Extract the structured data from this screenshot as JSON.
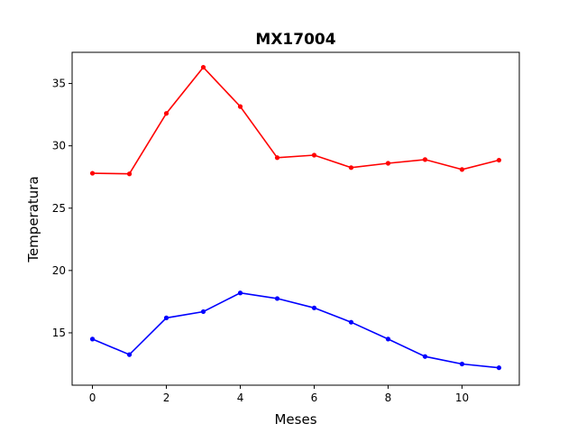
{
  "chart_data": {
    "type": "line",
    "title": "MX17004",
    "xlabel": "Meses",
    "ylabel": "Temperatura",
    "x": [
      0,
      1,
      2,
      3,
      4,
      5,
      6,
      7,
      8,
      9,
      10,
      11
    ],
    "xlim": [
      -0.55,
      11.55
    ],
    "ylim": [
      10.8,
      37.5
    ],
    "xticks": [
      0,
      2,
      4,
      6,
      8,
      10
    ],
    "yticks": [
      15,
      20,
      25,
      30,
      35
    ],
    "grid": false,
    "series": [
      {
        "color": "#ff0000",
        "values": [
          27.8,
          27.75,
          32.6,
          36.3,
          33.15,
          29.05,
          29.25,
          28.25,
          28.6,
          28.9,
          28.1,
          28.85
        ]
      },
      {
        "color": "#0000ff",
        "values": [
          14.5,
          13.25,
          16.2,
          16.7,
          18.2,
          17.75,
          17.0,
          15.85,
          14.5,
          13.1,
          12.5,
          12.2
        ]
      }
    ]
  }
}
